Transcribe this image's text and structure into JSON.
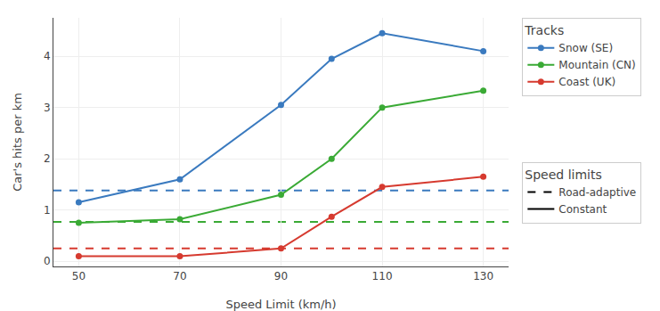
{
  "chart_data": {
    "type": "line",
    "x": [
      50,
      70,
      90,
      100,
      110,
      130
    ],
    "xlabel": "Speed Limit (km/h)",
    "ylabel": "Car's hits per km",
    "series": [
      {
        "name": "Snow (SE)",
        "color": "#3a7abf",
        "values": [
          1.15,
          1.6,
          3.05,
          3.95,
          4.45,
          4.1
        ],
        "marker": "circle",
        "line_style": "solid"
      },
      {
        "name": "Mountain (CN)",
        "color": "#3aaa35",
        "values": [
          0.75,
          0.82,
          1.3,
          2.0,
          3.0,
          3.33
        ],
        "marker": "circle",
        "line_style": "solid"
      },
      {
        "name": "Coast (UK)",
        "color": "#d63a2f",
        "values": [
          0.1,
          0.1,
          0.25,
          0.87,
          1.45,
          1.65
        ],
        "marker": "circle",
        "line_style": "solid"
      }
    ],
    "hlines": [
      {
        "value": 1.38,
        "color": "#3a7abf",
        "line_style": "dashed"
      },
      {
        "value": 0.77,
        "color": "#3aaa35",
        "line_style": "dashed"
      },
      {
        "value": 0.25,
        "color": "#d63a2f",
        "line_style": "dashed"
      }
    ],
    "legend_title": "Tracks",
    "style_legend": {
      "title": "Speed limits",
      "entries": [
        {
          "name": "Road-adaptive",
          "line_style": "dashed",
          "color": "black"
        },
        {
          "name": "Constant",
          "line_style": "solid",
          "color": "black"
        }
      ]
    },
    "legend": "right",
    "xlim": [
      45,
      135
    ],
    "ylim": [
      -0.1,
      4.75
    ],
    "xticks": [
      50,
      70,
      90,
      110,
      130
    ],
    "yticks": [
      0,
      1,
      2,
      3,
      4
    ],
    "grid": true
  }
}
